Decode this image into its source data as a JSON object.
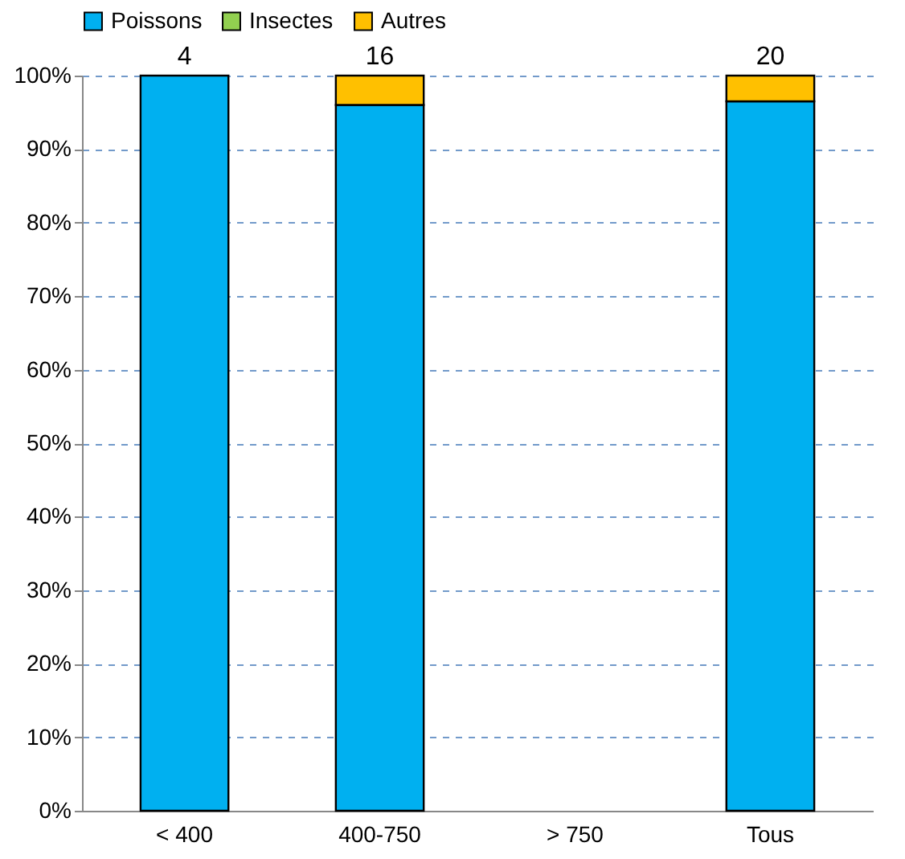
{
  "chart_data": {
    "type": "bar",
    "stacked": true,
    "categories": [
      "< 400",
      "400-750",
      "> 750",
      "Tous"
    ],
    "series": [
      {
        "name": "Poissons",
        "color": "#00b0f0",
        "values": [
          100,
          96,
          null,
          96.5
        ]
      },
      {
        "name": "Insectes",
        "color": "#92d050",
        "values": [
          null,
          null,
          null,
          null
        ]
      },
      {
        "name": "Autres",
        "color": "#ffc000",
        "values": [
          null,
          4,
          null,
          3.5
        ]
      }
    ],
    "annotations": [
      {
        "text": "4",
        "x": "< 400",
        "y": 100
      },
      {
        "text": "16",
        "x": "400-750",
        "y": 100
      },
      {
        "text": "20",
        "x": "Tous",
        "y": 100
      }
    ],
    "ylim": [
      0,
      100
    ],
    "yticks": [
      {
        "value": 0,
        "label": "0%"
      },
      {
        "value": 10,
        "label": "10%"
      },
      {
        "value": 20,
        "label": "20%"
      },
      {
        "value": 30,
        "label": "30%"
      },
      {
        "value": 40,
        "label": "40%"
      },
      {
        "value": 50,
        "label": "50%"
      },
      {
        "value": 60,
        "label": "60%"
      },
      {
        "value": 70,
        "label": "70%"
      },
      {
        "value": 80,
        "label": "80%"
      },
      {
        "value": 90,
        "label": "90%"
      },
      {
        "value": 100,
        "label": "100%"
      }
    ],
    "grid": "y",
    "line_style": "dashed",
    "legend": "top"
  }
}
